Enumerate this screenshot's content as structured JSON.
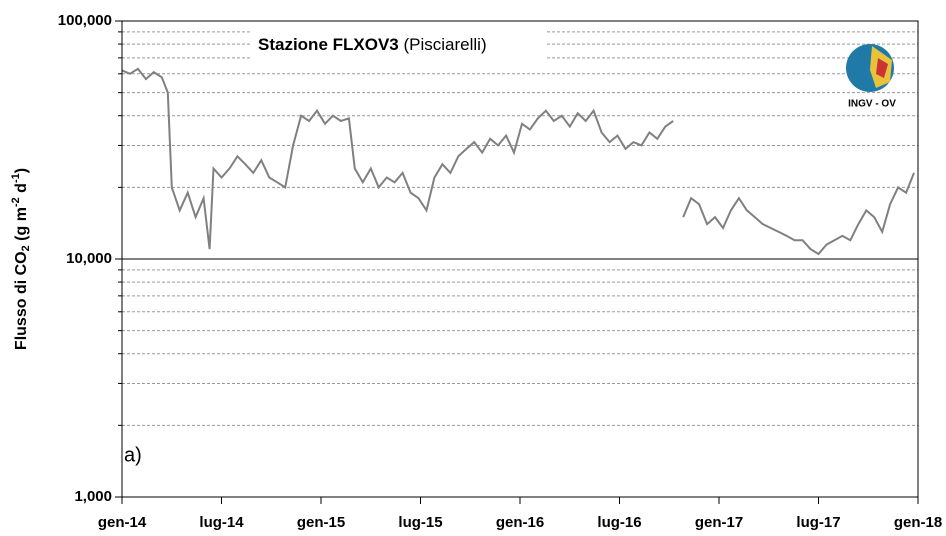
{
  "chart_data": {
    "type": "line",
    "title": "Stazione FLXOV3",
    "subtitle": "(Pisciarelli)",
    "ylabel": [
      "Flusso di CO",
      "2",
      " (g m",
      "-2",
      " d",
      "-1",
      ")"
    ],
    "panel_label": "a)",
    "logo_text": "INGV - OV",
    "log_scale": true,
    "grid": true,
    "ylim": [
      1000,
      100000
    ],
    "yticks": [
      {
        "value": 1000,
        "label": "1,000"
      },
      {
        "value": 10000,
        "label": "10,000"
      },
      {
        "value": 100000,
        "label": "100,000"
      }
    ],
    "minor_gridlines": [
      2000,
      3000,
      4000,
      5000,
      6000,
      7000,
      8000,
      9000,
      20000,
      30000,
      40000,
      50000,
      60000,
      70000,
      80000,
      90000
    ],
    "xlim": [
      2014,
      2018
    ],
    "xticks": [
      {
        "value": 2014,
        "label": "gen-14"
      },
      {
        "value": 2014.5,
        "label": "lug-14"
      },
      {
        "value": 2015,
        "label": "gen-15"
      },
      {
        "value": 2015.5,
        "label": "lug-15"
      },
      {
        "value": 2016,
        "label": "gen-16"
      },
      {
        "value": 2016.5,
        "label": "lug-16"
      },
      {
        "value": 2017,
        "label": "gen-17"
      },
      {
        "value": 2017.5,
        "label": "lug-17"
      },
      {
        "value": 2018,
        "label": "gen-18"
      }
    ],
    "x": [
      2014.0,
      2014.04,
      2014.08,
      2014.12,
      2014.16,
      2014.2,
      2014.23,
      2014.25,
      2014.29,
      2014.33,
      2014.37,
      2014.41,
      2014.44,
      2014.46,
      2014.5,
      2014.54,
      2014.58,
      2014.62,
      2014.66,
      2014.7,
      2014.74,
      2014.78,
      2014.82,
      2014.86,
      2014.9,
      2014.94,
      2014.98,
      2015.02,
      2015.06,
      2015.1,
      2015.14,
      2015.17,
      2015.21,
      2015.25,
      2015.29,
      2015.33,
      2015.37,
      2015.41,
      2015.45,
      2015.49,
      2015.53,
      2015.57,
      2015.61,
      2015.65,
      2015.69,
      2015.73,
      2015.77,
      2015.81,
      2015.85,
      2015.89,
      2015.93,
      2015.97,
      2016.01,
      2016.05,
      2016.09,
      2016.13,
      2016.17,
      2016.21,
      2016.25,
      2016.29,
      2016.33,
      2016.37,
      2016.41,
      2016.45,
      2016.49,
      2016.53,
      2016.57,
      2016.61,
      2016.65,
      2016.69,
      2016.73,
      2016.77,
      2016.8,
      2016.82,
      2016.86,
      2016.9,
      2016.94,
      2016.98,
      2017.02,
      2017.06,
      2017.1,
      2017.14,
      2017.18,
      2017.22,
      2017.26,
      2017.3,
      2017.34,
      2017.38,
      2017.42,
      2017.46,
      2017.5,
      2017.54,
      2017.58,
      2017.62,
      2017.66,
      2017.7,
      2017.74,
      2017.78,
      2017.82,
      2017.86,
      2017.9,
      2017.94,
      2017.98
    ],
    "series": [
      {
        "color": "#808080",
        "values": [
          62000,
          60000,
          63000,
          57000,
          61000,
          58000,
          50000,
          20000,
          16000,
          19000,
          15000,
          18000,
          11000,
          24000,
          22000,
          24000,
          27000,
          25000,
          23000,
          26000,
          22000,
          21000,
          20000,
          30000,
          40000,
          38000,
          42000,
          37000,
          40000,
          38000,
          39000,
          24000,
          21000,
          24000,
          20000,
          22000,
          21000,
          23000,
          19000,
          18000,
          16000,
          22000,
          25000,
          23000,
          27000,
          29000,
          31000,
          28000,
          32000,
          30000,
          33000,
          28000,
          37000,
          35000,
          39000,
          42000,
          38000,
          40000,
          36000,
          41000,
          38000,
          42000,
          34000,
          31000,
          33000,
          29000,
          31000,
          30000,
          34000,
          32000,
          36000,
          38000,
          null,
          15000,
          18000,
          17000,
          14000,
          15000,
          13500,
          16000,
          18000,
          16000,
          15000,
          14000,
          13500,
          13000,
          12500,
          12000,
          12000,
          11000,
          10500,
          11500,
          12000,
          12500,
          12000,
          14000,
          16000,
          15000,
          13000,
          17000,
          20000,
          19000,
          23000
        ]
      }
    ]
  }
}
